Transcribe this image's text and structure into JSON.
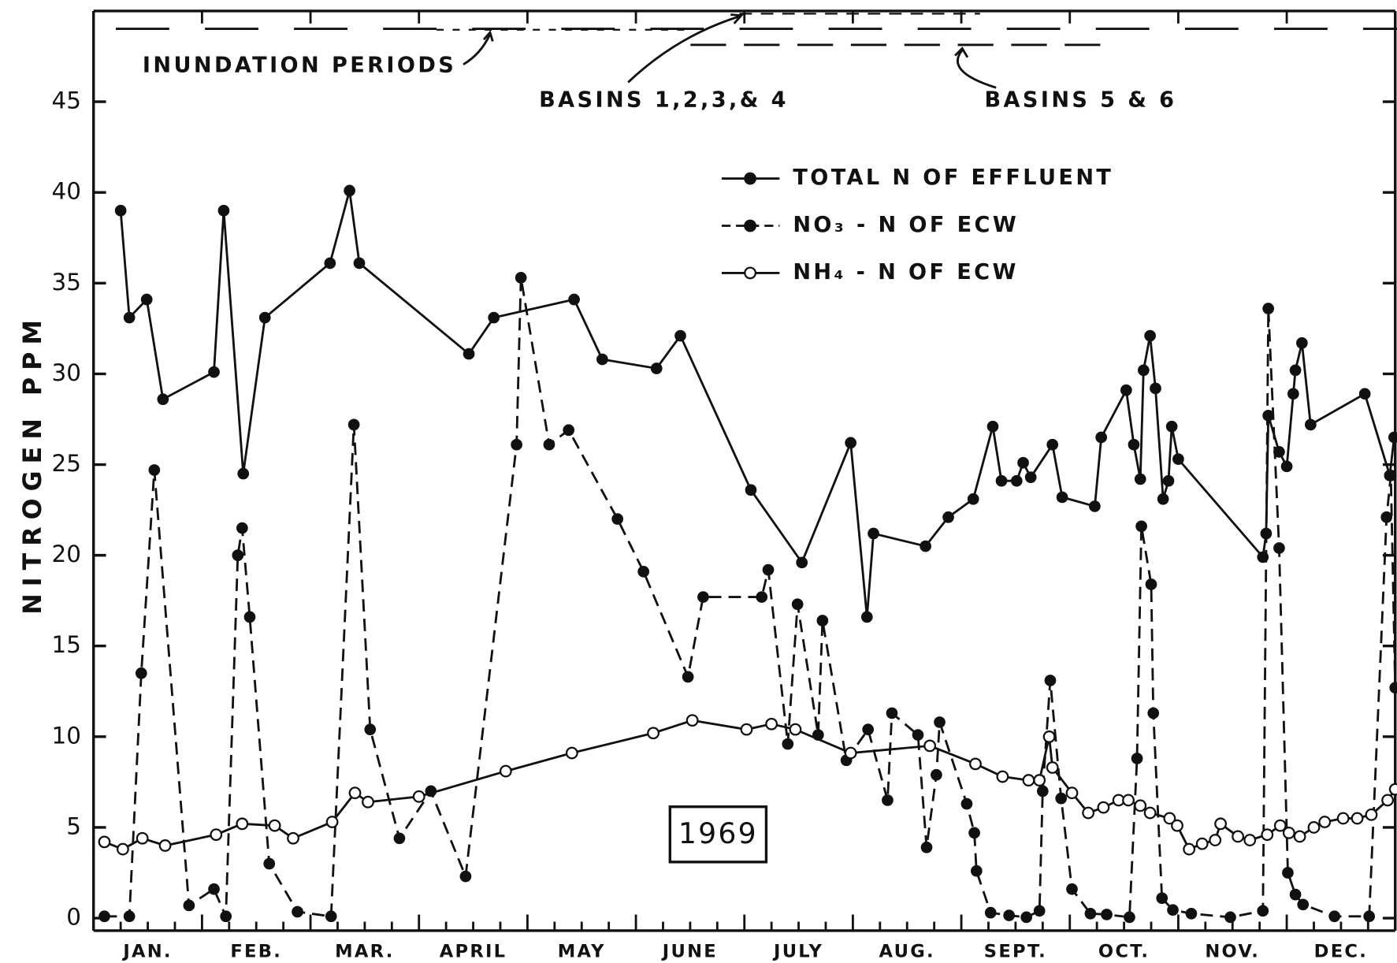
{
  "chart_data": {
    "type": "line",
    "ylabel": "NITROGEN PPM",
    "categories": [
      "JAN.",
      "FEB.",
      "MAR.",
      "APRIL",
      "MAY",
      "JUNE",
      "JULY",
      "AUG.",
      "SEPT.",
      "OCT.",
      "NOV.",
      "DEC."
    ],
    "xlim": [
      0,
      12
    ],
    "ylim": [
      0,
      50
    ],
    "yticks": [
      0,
      5,
      10,
      15,
      20,
      25,
      30,
      35,
      40,
      45
    ],
    "annotations": [
      "INUNDATION PERIODS",
      "BASINS 1,2,3,& 4",
      "BASINS 5 & 6",
      "1969"
    ],
    "series": [
      {
        "name": "TOTAL N OF EFFLUENT",
        "color": "#111111",
        "style": "solid",
        "marker": "filled",
        "x": [
          0.25,
          0.33,
          0.49,
          0.64,
          1.11,
          1.2,
          1.38,
          1.58,
          2.18,
          2.36,
          2.45,
          3.46,
          3.69,
          4.43,
          4.69,
          5.19,
          5.41,
          6.06,
          6.53,
          6.98,
          7.13,
          7.19,
          7.67,
          7.88,
          8.11,
          8.29,
          8.37,
          8.51,
          8.57,
          8.64,
          8.84,
          8.93,
          9.23,
          9.29,
          9.52,
          9.59,
          9.65,
          9.68,
          9.74,
          9.79,
          9.86,
          9.91,
          9.94,
          10.0,
          10.78,
          10.81,
          10.83,
          10.93,
          11.0,
          11.06,
          11.08,
          11.14,
          11.22,
          11.72,
          11.95,
          11.99
        ],
        "values": [
          39.0,
          33.1,
          34.1,
          28.6,
          30.1,
          39.0,
          24.5,
          33.1,
          36.1,
          40.1,
          36.1,
          31.1,
          33.1,
          34.1,
          30.8,
          30.3,
          32.1,
          23.6,
          19.6,
          26.2,
          16.6,
          21.2,
          20.5,
          22.1,
          23.1,
          27.1,
          24.1,
          24.1,
          25.1,
          24.3,
          26.1,
          23.2,
          22.7,
          26.5,
          29.1,
          26.1,
          24.2,
          30.2,
          32.1,
          29.2,
          23.1,
          24.1,
          27.1,
          25.3,
          19.9,
          21.2,
          27.7,
          25.7,
          24.9,
          28.9,
          30.2,
          31.7,
          27.2,
          28.9,
          24.4,
          26.5
        ]
      },
      {
        "name": "NO₃ - N OF ECW",
        "color": "#111111",
        "style": "dashed",
        "marker": "filled",
        "x": [
          0.1,
          0.33,
          0.44,
          0.56,
          0.88,
          1.11,
          1.22,
          1.33,
          1.37,
          1.44,
          1.62,
          1.88,
          2.19,
          2.4,
          2.55,
          2.82,
          3.11,
          3.43,
          3.9,
          3.94,
          4.2,
          4.38,
          4.83,
          5.07,
          5.48,
          5.62,
          6.16,
          6.22,
          6.4,
          6.49,
          6.68,
          6.72,
          6.94,
          7.14,
          7.32,
          7.36,
          7.6,
          7.68,
          7.77,
          7.8,
          8.05,
          8.12,
          8.14,
          8.27,
          8.44,
          8.6,
          8.72,
          8.75,
          8.82,
          8.92,
          9.02,
          9.19,
          9.34,
          9.55,
          9.62,
          9.66,
          9.75,
          9.77,
          9.85,
          9.95,
          10.12,
          10.48,
          10.78,
          10.83,
          10.93,
          11.01,
          11.08,
          11.15,
          11.44,
          11.76,
          11.92,
          11.96,
          12.0
        ],
        "values": [
          0.1,
          0.1,
          13.5,
          24.7,
          0.7,
          1.6,
          0.1,
          20.0,
          21.5,
          16.6,
          3.0,
          0.35,
          0.1,
          27.2,
          10.4,
          4.4,
          7.0,
          2.3,
          26.1,
          35.3,
          26.1,
          26.9,
          22.0,
          19.1,
          13.3,
          17.7,
          17.7,
          19.2,
          9.6,
          17.3,
          10.1,
          16.4,
          8.7,
          10.4,
          6.5,
          11.3,
          10.1,
          3.9,
          7.9,
          10.8,
          6.3,
          4.7,
          2.6,
          0.3,
          0.15,
          0.05,
          0.4,
          7.0,
          13.1,
          6.6,
          1.6,
          0.25,
          0.2,
          0.05,
          8.8,
          21.6,
          18.4,
          11.3,
          1.1,
          0.45,
          0.25,
          0.05,
          0.4,
          33.6,
          20.4,
          2.5,
          1.3,
          0.75,
          0.1,
          0.1,
          22.1,
          24.4,
          12.7
        ]
      },
      {
        "name": "NH₄ - N OF ECW",
        "color": "#111111",
        "style": "solid",
        "marker": "open",
        "x": [
          0.1,
          0.27,
          0.45,
          0.66,
          1.13,
          1.37,
          1.67,
          1.84,
          2.2,
          2.41,
          2.53,
          3.0,
          3.8,
          4.41,
          5.16,
          5.52,
          6.02,
          6.25,
          6.47,
          6.98,
          7.71,
          8.13,
          8.38,
          8.62,
          8.72,
          8.81,
          8.84,
          9.02,
          9.17,
          9.31,
          9.45,
          9.54,
          9.65,
          9.74,
          9.92,
          9.99,
          10.1,
          10.22,
          10.34,
          10.39,
          10.55,
          10.66,
          10.82,
          10.94,
          11.02,
          11.12,
          11.25,
          11.35,
          11.52,
          11.65,
          11.78,
          11.93,
          12.0
        ],
        "values": [
          4.2,
          3.8,
          4.4,
          4.0,
          4.6,
          5.2,
          5.1,
          4.4,
          5.3,
          6.9,
          6.4,
          6.7,
          8.1,
          9.1,
          10.2,
          10.9,
          10.4,
          10.7,
          10.4,
          9.1,
          9.5,
          8.5,
          7.8,
          7.6,
          7.6,
          10.0,
          8.3,
          6.9,
          5.8,
          6.1,
          6.5,
          6.5,
          6.2,
          5.8,
          5.5,
          5.1,
          3.8,
          4.1,
          4.3,
          5.2,
          4.5,
          4.3,
          4.6,
          5.1,
          4.7,
          4.5,
          5.0,
          5.3,
          5.5,
          5.5,
          5.7,
          6.5,
          7.1
        ]
      }
    ]
  }
}
